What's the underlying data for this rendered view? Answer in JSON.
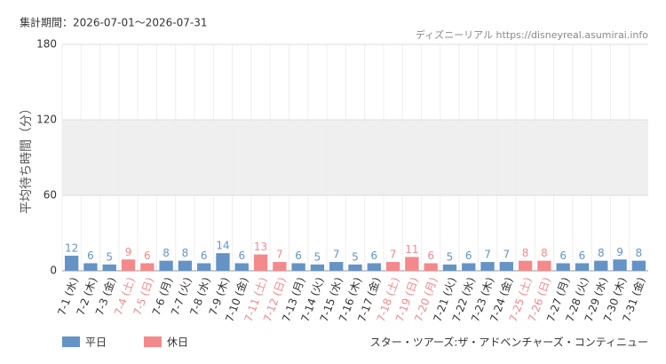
{
  "chart_data": {
    "type": "bar",
    "title": "集計期間：2026-07-01〜2026-07-31",
    "source": "ディズニーリアル https://disneyreal.asumirai.info",
    "subtitle": "スター・ツアーズ:ザ・アドベンチャーズ・コンティニュー",
    "y_label": "平均待ち時間（分）",
    "categories": [
      "7-1 (水)",
      "7-2 (木)",
      "7-3 (金)",
      "7-4 (土)",
      "7-5 (日)",
      "7-6 (月)",
      "7-7 (火)",
      "7-8 (水)",
      "7-9 (木)",
      "7-10 (金)",
      "7-11 (土)",
      "7-12 (日)",
      "7-13 (月)",
      "7-14 (火)",
      "7-15 (水)",
      "7-16 (木)",
      "7-17 (金)",
      "7-18 (土)",
      "7-19 (日)",
      "7-20 (月)",
      "7-21 (火)",
      "7-22 (水)",
      "7-23 (木)",
      "7-24 (金)",
      "7-25 (土)",
      "7-26 (日)",
      "7-27 (月)",
      "7-28 (火)",
      "7-29 (水)",
      "7-30 (木)",
      "7-31 (金)"
    ],
    "series": [
      {
        "name": "平日",
        "color": "#6593c6",
        "values": [
          12,
          6,
          5,
          null,
          null,
          8,
          8,
          6,
          14,
          6,
          null,
          null,
          6,
          5,
          7,
          5,
          6,
          null,
          null,
          null,
          5,
          6,
          7,
          7,
          null,
          null,
          6,
          6,
          8,
          9,
          8
        ]
      },
      {
        "name": "休日",
        "color": "#f4898c",
        "values": [
          null,
          null,
          null,
          9,
          6,
          null,
          null,
          null,
          null,
          null,
          13,
          7,
          null,
          null,
          null,
          null,
          null,
          7,
          11,
          6,
          null,
          null,
          null,
          null,
          8,
          8,
          null,
          null,
          null,
          null,
          null
        ]
      }
    ],
    "ylim": [
      0,
      180
    ],
    "yticks": [
      0,
      60,
      120,
      180
    ],
    "grid": true
  }
}
